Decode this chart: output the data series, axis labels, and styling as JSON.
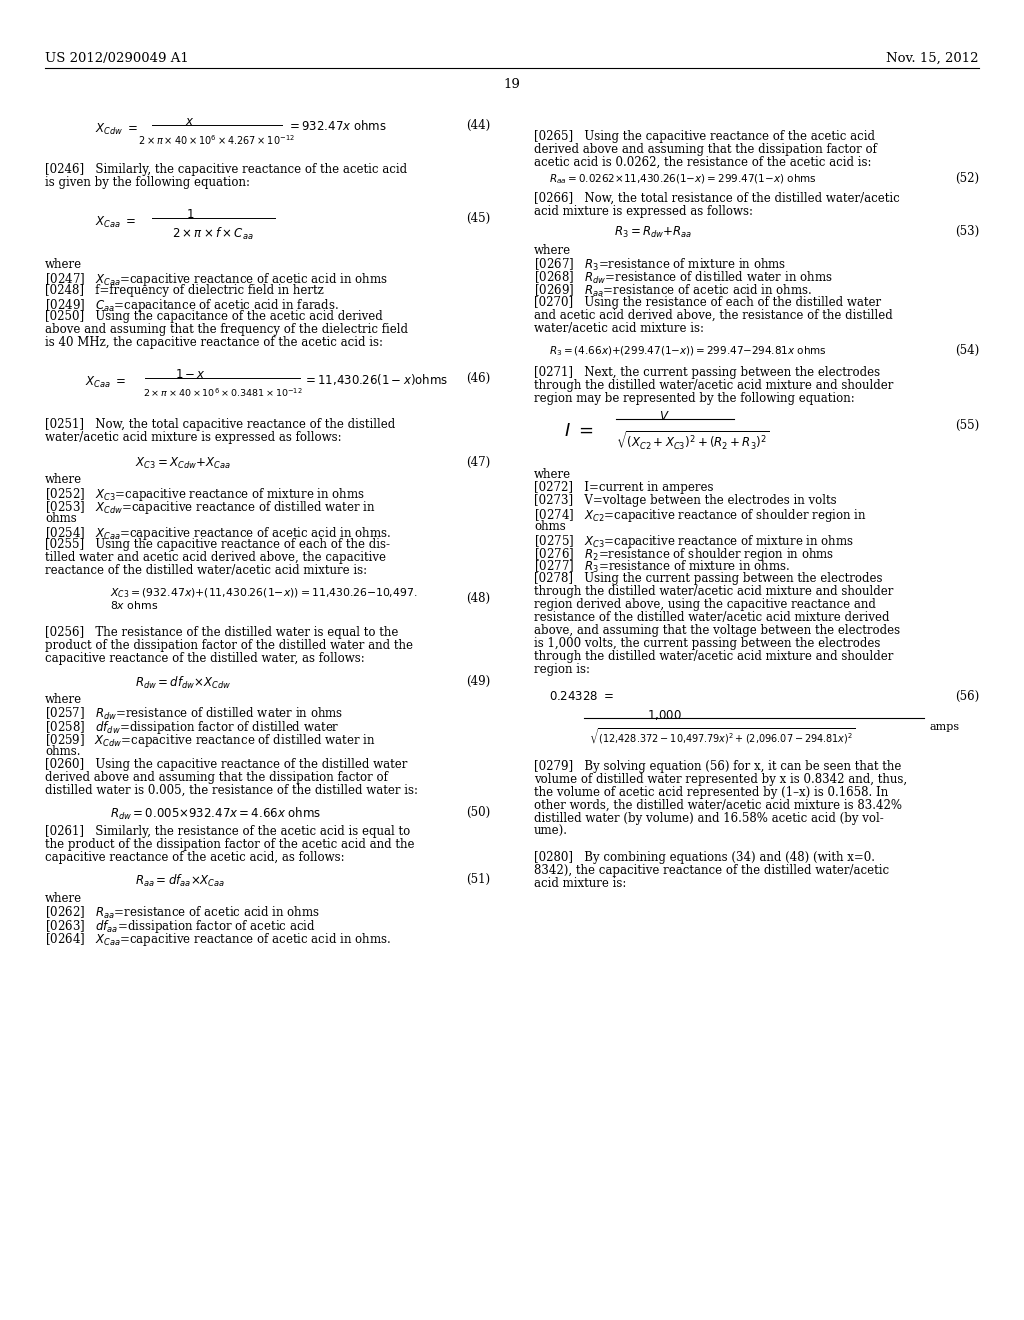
{
  "bg_color": "#ffffff",
  "text_color": "#000000",
  "header_left": "US 2012/0290049 A1",
  "header_right": "Nov. 15, 2012",
  "page_number": "19"
}
